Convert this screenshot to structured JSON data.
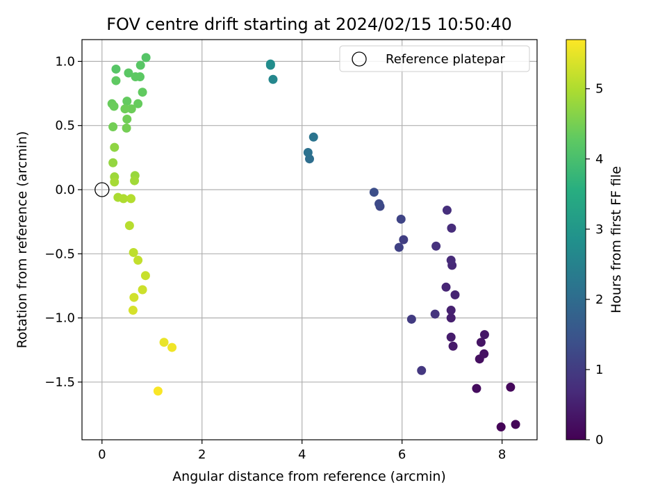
{
  "chart_data": {
    "type": "scatter",
    "title": "FOV centre drift starting at 2024/02/15 10:50:40",
    "xlabel": "Angular distance from reference (arcmin)",
    "ylabel": "Rotation from reference (arcmin)",
    "xlim": [
      -0.4,
      8.7
    ],
    "ylim": [
      -1.95,
      1.17
    ],
    "xticks": [
      0,
      2,
      4,
      6,
      8
    ],
    "xtick_labels": [
      "0",
      "2",
      "4",
      "6",
      "8"
    ],
    "yticks": [
      -1.5,
      -1.0,
      -0.5,
      0.0,
      0.5,
      1.0
    ],
    "ytick_labels": [
      "−1.5",
      "−1.0",
      "−0.5",
      "0.0",
      "0.5",
      "1.0"
    ],
    "grid": true,
    "legend": {
      "position": "upper right",
      "entries": [
        "Reference platepar"
      ]
    },
    "reference_point": {
      "name": "Reference platepar",
      "x": 0,
      "y": 0
    },
    "colorbar": {
      "label": "Hours from first FF file",
      "colormap": "viridis",
      "range": [
        0,
        5.7
      ],
      "ticks": [
        0,
        1,
        2,
        3,
        4,
        5
      ],
      "tick_labels": [
        "0",
        "1",
        "2",
        "3",
        "4",
        "5"
      ]
    },
    "series": [
      {
        "points": [
          [
            7.98,
            -1.85,
            0.05
          ],
          [
            8.27,
            -1.83,
            0.08
          ],
          [
            8.17,
            -1.54,
            0.12
          ],
          [
            7.49,
            -1.55,
            0.18
          ],
          [
            7.55,
            -1.32,
            0.22
          ],
          [
            7.64,
            -1.28,
            0.26
          ],
          [
            7.58,
            -1.19,
            0.3
          ],
          [
            7.65,
            -1.13,
            0.34
          ],
          [
            7.02,
            -1.22,
            0.4
          ],
          [
            6.98,
            -1.15,
            0.44
          ],
          [
            6.98,
            -1.0,
            0.48
          ],
          [
            6.98,
            -0.94,
            0.52
          ],
          [
            7.06,
            -0.82,
            0.56
          ],
          [
            6.88,
            -0.76,
            0.6
          ],
          [
            7.0,
            -0.59,
            0.64
          ],
          [
            6.98,
            -0.55,
            0.68
          ],
          [
            6.99,
            -0.3,
            0.72
          ],
          [
            6.9,
            -0.16,
            0.76
          ],
          [
            6.68,
            -0.44,
            0.8
          ],
          [
            6.66,
            -0.97,
            0.86
          ],
          [
            6.39,
            -1.41,
            0.92
          ],
          [
            6.19,
            -1.01,
            0.98
          ],
          [
            6.03,
            -0.39,
            1.04
          ],
          [
            5.94,
            -0.45,
            1.1
          ],
          [
            5.98,
            -0.23,
            1.16
          ],
          [
            5.56,
            -0.13,
            1.22
          ],
          [
            5.54,
            -0.11,
            1.28
          ],
          [
            5.44,
            -0.02,
            1.34
          ],
          [
            4.15,
            0.24,
            2.05
          ],
          [
            4.12,
            0.29,
            2.12
          ],
          [
            4.23,
            0.41,
            2.18
          ],
          [
            3.42,
            0.86,
            2.62
          ],
          [
            3.37,
            0.97,
            2.7
          ],
          [
            3.37,
            0.98,
            2.76
          ],
          [
            0.88,
            1.03,
            4.15
          ],
          [
            0.28,
            0.94,
            4.18
          ],
          [
            0.77,
            0.97,
            4.2
          ],
          [
            0.53,
            0.91,
            4.22
          ],
          [
            0.76,
            0.88,
            4.24
          ],
          [
            0.67,
            0.88,
            4.26
          ],
          [
            0.28,
            0.85,
            4.28
          ],
          [
            0.81,
            0.76,
            4.3
          ],
          [
            0.5,
            0.69,
            4.32
          ],
          [
            0.72,
            0.67,
            4.34
          ],
          [
            0.2,
            0.67,
            4.36
          ],
          [
            0.24,
            0.65,
            4.38
          ],
          [
            0.59,
            0.63,
            4.4
          ],
          [
            0.46,
            0.63,
            4.42
          ],
          [
            0.5,
            0.55,
            4.44
          ],
          [
            0.22,
            0.49,
            4.46
          ],
          [
            0.49,
            0.48,
            4.48
          ],
          [
            0.25,
            0.33,
            4.72
          ],
          [
            0.22,
            0.21,
            4.76
          ],
          [
            0.66,
            0.11,
            4.8
          ],
          [
            0.25,
            0.1,
            4.84
          ],
          [
            0.65,
            0.07,
            4.88
          ],
          [
            0.25,
            0.06,
            4.92
          ],
          [
            0.32,
            -0.06,
            4.96
          ],
          [
            0.43,
            -0.07,
            5.0
          ],
          [
            0.58,
            -0.07,
            5.04
          ],
          [
            0.55,
            -0.28,
            5.08
          ],
          [
            0.63,
            -0.49,
            5.14
          ],
          [
            0.72,
            -0.55,
            5.18
          ],
          [
            0.87,
            -0.67,
            5.22
          ],
          [
            0.81,
            -0.78,
            5.26
          ],
          [
            0.64,
            -0.84,
            5.3
          ],
          [
            0.62,
            -0.94,
            5.34
          ],
          [
            1.24,
            -1.19,
            5.52
          ],
          [
            1.4,
            -1.23,
            5.58
          ],
          [
            1.12,
            -1.57,
            5.66
          ]
        ]
      }
    ]
  }
}
